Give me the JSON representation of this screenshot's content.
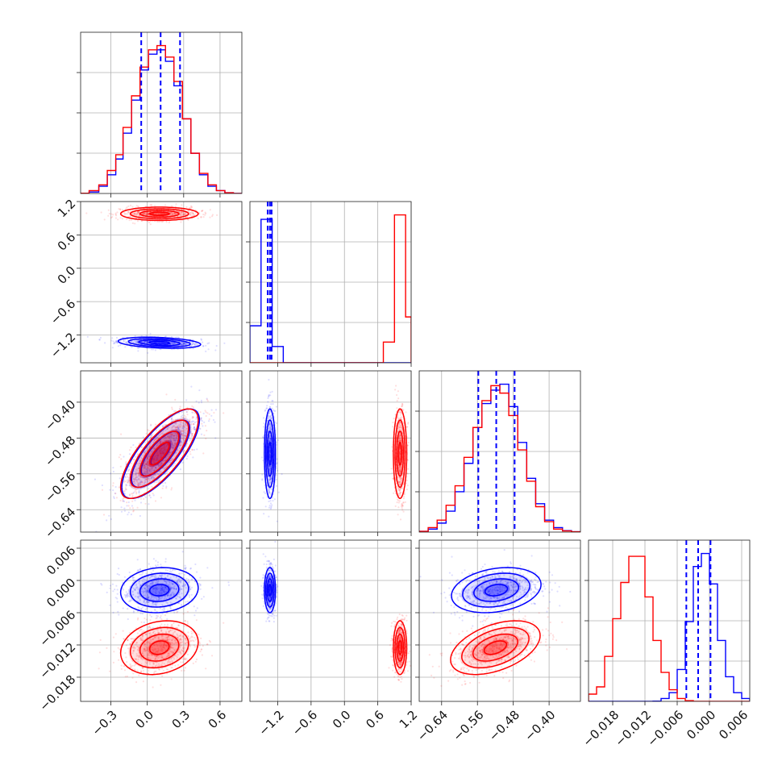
{
  "chart_data": {
    "type": "corner-plot",
    "series": [
      {
        "name": "",
        "color": "#0000ff"
      },
      {
        "name": "",
        "color": "#ff0000"
      }
    ],
    "parameters": [
      {
        "id": "p0",
        "range": [
          -0.55,
          0.78
        ],
        "ticks": [
          -0.3,
          0.0,
          0.3,
          0.6
        ],
        "tick_labels": [
          "−0.3",
          "0.0",
          "0.3",
          "0.6"
        ],
        "quantiles_blue": [
          -0.05,
          0.11,
          0.27
        ]
      },
      {
        "id": "p1",
        "range": [
          -1.7,
          1.2
        ],
        "ticks": [
          -1.2,
          -0.6,
          0.0,
          0.6,
          1.2
        ],
        "tick_labels": [
          "−1.2",
          "−0.6",
          "0.0",
          "0.6",
          "1.2"
        ],
        "quantiles_blue": [
          -1.38,
          -1.34,
          -1.31
        ]
      },
      {
        "id": "p2",
        "range": [
          -0.69,
          -0.33
        ],
        "ticks": [
          -0.64,
          -0.56,
          -0.48,
          -0.4
        ],
        "tick_labels": [
          "−0.64",
          "−0.56",
          "−0.48",
          "−0.40"
        ],
        "quantiles_blue": [
          -0.558,
          -0.518,
          -0.477
        ]
      },
      {
        "id": "p3",
        "range": [
          -0.0225,
          0.0075
        ],
        "ticks": [
          -0.018,
          -0.012,
          -0.006,
          0.0,
          0.006
        ],
        "tick_labels": [
          "−0.018",
          "−0.012",
          "−0.006",
          "0.000",
          "0.006"
        ],
        "quantiles_blue": [
          -0.0043,
          -0.0021,
          0.0002
        ]
      }
    ],
    "histograms": {
      "p0": {
        "bin_edges": [
          -0.55,
          -0.48,
          -0.4,
          -0.33,
          -0.26,
          -0.2,
          -0.13,
          -0.06,
          0.01,
          0.08,
          0.15,
          0.22,
          0.29,
          0.36,
          0.43,
          0.5,
          0.57,
          0.64,
          0.71,
          0.78
        ],
        "blue": [
          0.002,
          0.01,
          0.05,
          0.13,
          0.24,
          0.42,
          0.65,
          0.86,
          0.97,
          1.0,
          0.92,
          0.75,
          0.52,
          0.28,
          0.13,
          0.05,
          0.02,
          0.005,
          0.0
        ],
        "red": [
          0.002,
          0.02,
          0.06,
          0.16,
          0.27,
          0.46,
          0.68,
          0.88,
          1.0,
          1.03,
          0.95,
          0.78,
          0.52,
          0.28,
          0.14,
          0.06,
          0.02,
          0.005,
          0.0
        ]
      },
      "p1": {
        "bin_edges": [
          -1.7,
          -1.5,
          -1.3,
          -1.1,
          -0.9,
          -0.7,
          -0.5,
          -0.3,
          -0.1,
          0.1,
          0.3,
          0.5,
          0.7,
          0.9,
          1.1,
          1.2
        ],
        "blue": [
          0.25,
          0.97,
          0.11,
          0,
          0,
          0,
          0,
          0,
          0,
          0,
          0,
          0,
          0,
          0,
          0
        ],
        "red": [
          0,
          0,
          0,
          0,
          0,
          0,
          0,
          0,
          0,
          0,
          0,
          0,
          0.14,
          1.0,
          0.31
        ]
      },
      "p2": {
        "bin_edges": [
          -0.69,
          -0.67,
          -0.65,
          -0.63,
          -0.61,
          -0.59,
          -0.57,
          -0.55,
          -0.53,
          -0.51,
          -0.49,
          -0.47,
          -0.45,
          -0.43,
          -0.41,
          -0.39,
          -0.37,
          -0.35,
          -0.33
        ],
        "blue": [
          0.005,
          0.02,
          0.06,
          0.14,
          0.27,
          0.46,
          0.7,
          0.86,
          0.95,
          0.99,
          0.84,
          0.6,
          0.36,
          0.19,
          0.08,
          0.03,
          0.01,
          0.002
        ],
        "red": [
          0.005,
          0.03,
          0.08,
          0.18,
          0.31,
          0.5,
          0.7,
          0.88,
          0.98,
          0.93,
          0.78,
          0.55,
          0.34,
          0.17,
          0.07,
          0.02,
          0.008,
          0.002
        ]
      },
      "p3": {
        "bin_edges": [
          -0.0225,
          -0.021,
          -0.0195,
          -0.018,
          -0.0165,
          -0.015,
          -0.0135,
          -0.012,
          -0.0105,
          -0.009,
          -0.0075,
          -0.006,
          -0.0045,
          -0.003,
          -0.0015,
          0.0,
          0.0015,
          0.003,
          0.0045,
          0.006,
          0.0075
        ],
        "blue": [
          0,
          0,
          0,
          0,
          0,
          0,
          0,
          0,
          0.002,
          0.02,
          0.06,
          0.22,
          0.55,
          0.93,
          1.02,
          0.81,
          0.42,
          0.17,
          0.06,
          0.02
        ],
        "red": [
          0.05,
          0.1,
          0.31,
          0.57,
          0.82,
          1.0,
          1.0,
          0.72,
          0.42,
          0.2,
          0.08,
          0.02,
          0.005,
          0,
          0,
          0,
          0,
          0,
          0,
          0
        ]
      }
    },
    "correlations": {
      "p1_vs_p0": {
        "blue": {
          "cx": 0.1,
          "cy": -1.34,
          "sx": 0.17,
          "sy": 0.05,
          "rho": -0.3
        },
        "red": {
          "cx": 0.1,
          "cy": 0.98,
          "sx": 0.16,
          "sy": 0.06,
          "rho": 0.0
        }
      },
      "p2_vs_p0": {
        "blue": {
          "cx": 0.11,
          "cy": -0.515,
          "sx": 0.16,
          "sy": 0.05,
          "rho": 0.75
        },
        "red": {
          "cx": 0.1,
          "cy": -0.515,
          "sx": 0.16,
          "sy": 0.05,
          "rho": 0.75
        }
      },
      "p3_vs_p0": {
        "blue": {
          "cx": 0.1,
          "cy": -0.0018,
          "sx": 0.16,
          "sy": 0.0021,
          "rho": 0.1
        },
        "red": {
          "cx": 0.1,
          "cy": -0.0125,
          "sx": 0.16,
          "sy": 0.0025,
          "rho": 0.2
        }
      },
      "p2_vs_p1": {
        "blue": {
          "cx": -1.34,
          "cy": -0.515,
          "sx": 0.05,
          "sy": 0.05,
          "rho": 0.0
        },
        "red": {
          "cx": 1.0,
          "cy": -0.515,
          "sx": 0.06,
          "sy": 0.05,
          "rho": 0.0
        }
      },
      "p3_vs_p1": {
        "blue": {
          "cx": -1.34,
          "cy": -0.0018,
          "sx": 0.05,
          "sy": 0.0021,
          "rho": 0.0
        },
        "red": {
          "cx": 1.0,
          "cy": -0.0125,
          "sx": 0.06,
          "sy": 0.0025,
          "rho": 0.0
        }
      },
      "p3_vs_p2": {
        "blue": {
          "cx": -0.518,
          "cy": -0.0018,
          "sx": 0.05,
          "sy": 0.0021,
          "rho": 0.25
        },
        "red": {
          "cx": -0.52,
          "cy": -0.0125,
          "sx": 0.05,
          "sy": 0.0025,
          "rho": 0.45
        }
      }
    },
    "grid": true
  }
}
